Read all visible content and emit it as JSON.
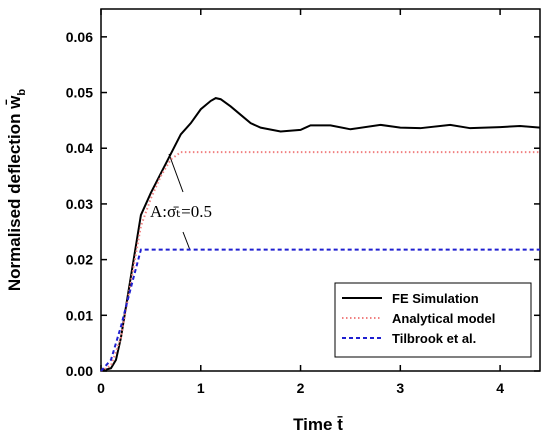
{
  "chart_data": {
    "type": "line",
    "x_label": {
      "text": "Time t̄"
    },
    "y_label": {
      "text": "Normalised deflection w̄",
      "subscript": "b"
    },
    "annotation": "A:σ̄ₜ=0.5",
    "xlim": [
      0,
      4.4
    ],
    "ylim": [
      0,
      0.065
    ],
    "xticks": [
      0,
      1,
      2,
      3,
      4
    ],
    "yticks": [
      {
        "value": 0,
        "label": "0.00"
      },
      {
        "value": 0.01,
        "label": "0.01"
      },
      {
        "value": 0.02,
        "label": "0.02"
      },
      {
        "value": 0.03,
        "label": "0.03"
      },
      {
        "value": 0.04,
        "label": "0.04"
      },
      {
        "value": 0.05,
        "label": "0.05"
      },
      {
        "value": 0.06,
        "label": "0.06"
      }
    ],
    "legend_position": "lower right",
    "series": [
      {
        "name": "FE Simulation",
        "color": "#000000",
        "style": "solid",
        "x": [
          0,
          0.1,
          0.15,
          0.2,
          0.3,
          0.4,
          0.5,
          0.6,
          0.7,
          0.8,
          0.9,
          1.0,
          1.1,
          1.15,
          1.2,
          1.3,
          1.4,
          1.5,
          1.6,
          1.8,
          2.0,
          2.1,
          2.3,
          2.5,
          2.8,
          3.0,
          3.2,
          3.5,
          3.7,
          4.0,
          4.2,
          4.4
        ],
        "values": [
          0,
          0.0005,
          0.002,
          0.006,
          0.017,
          0.028,
          0.032,
          0.0355,
          0.039,
          0.0425,
          0.0445,
          0.047,
          0.0485,
          0.049,
          0.0488,
          0.0475,
          0.046,
          0.0445,
          0.0437,
          0.043,
          0.0433,
          0.0441,
          0.0441,
          0.0434,
          0.0442,
          0.0437,
          0.0436,
          0.0442,
          0.0436,
          0.0438,
          0.044,
          0.0437
        ]
      },
      {
        "name": "Analytical model",
        "color": "#f08080",
        "style": "dotted",
        "x": [
          0,
          0.1,
          0.2,
          0.3,
          0.4,
          0.5,
          0.6,
          0.7,
          0.8,
          4.4
        ],
        "values": [
          0,
          0.001,
          0.006,
          0.016,
          0.026,
          0.031,
          0.035,
          0.038,
          0.0393,
          0.0393
        ]
      },
      {
        "name": "Tilbrook et al.",
        "color": "#1f1fd0",
        "style": "dashed",
        "x": [
          0,
          0.1,
          0.2,
          0.3,
          0.4,
          4.4
        ],
        "values": [
          0,
          0.002,
          0.008,
          0.015,
          0.0218,
          0.0218
        ]
      }
    ]
  }
}
